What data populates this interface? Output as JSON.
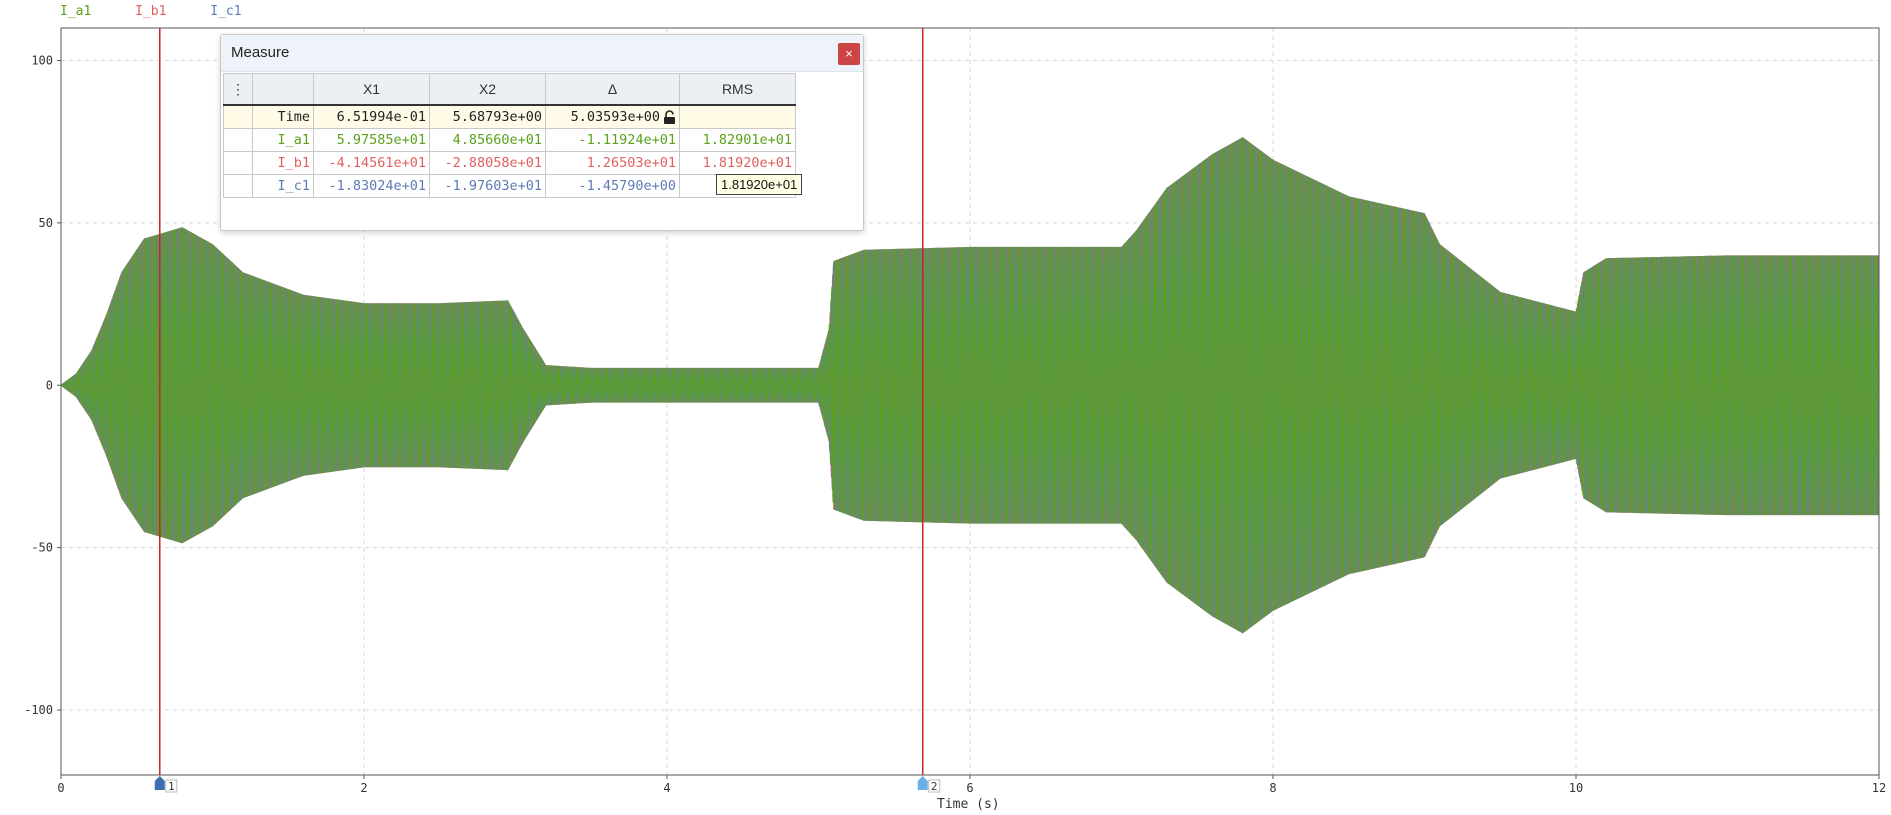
{
  "legend": [
    {
      "name": "I_a1",
      "color": "#5aa21a"
    },
    {
      "name": "I_b1",
      "color": "#e06060"
    },
    {
      "name": "I_c1",
      "color": "#5b7cb5"
    }
  ],
  "measure": {
    "title": "Measure",
    "close_label": "×",
    "menu_icon": "⋮",
    "headers": [
      "",
      "X1",
      "X2",
      "Δ",
      "RMS"
    ],
    "rows": [
      {
        "label": "Time",
        "x1": "6.51994e-01",
        "x2": "5.68793e+00",
        "delta": "5.03593e+00",
        "rms": "",
        "color": "#222222"
      },
      {
        "label": "I_a1",
        "x1": "5.97585e+01",
        "x2": "4.85660e+01",
        "delta": "-1.11924e+01",
        "rms": "1.82901e+01",
        "color": "#5aa21a"
      },
      {
        "label": "I_b1",
        "x1": "-4.14561e+01",
        "x2": "-2.88058e+01",
        "delta": "1.26503e+01",
        "rms": "1.81920e+01",
        "color": "#e06060"
      },
      {
        "label": "I_c1",
        "x1": "-1.83024e+01",
        "x2": "-1.97603e+01",
        "delta": "-1.45790e+00",
        "rms": "1.82...1",
        "color": "#5b7cb5"
      }
    ],
    "tooltip": "1.81920e+01"
  },
  "chart_data": {
    "type": "line",
    "xlabel": "Time (s)",
    "xlim": [
      0,
      12
    ],
    "ylim": [
      -120,
      110
    ],
    "xticks": [
      0,
      2,
      4,
      6,
      8,
      10,
      12
    ],
    "yticks": [
      100,
      50,
      0,
      -50,
      -100
    ],
    "grid": true,
    "cursors": [
      {
        "label": "1",
        "x": 0.652
      },
      {
        "label": "2",
        "x": 5.688
      }
    ],
    "series": [
      {
        "name": "I_a1",
        "color": "#5aa21a"
      },
      {
        "name": "I_b1",
        "color": "#e06060"
      },
      {
        "name": "I_c1",
        "color": "#5b7cb5"
      }
    ],
    "envelope": {
      "x": [
        0,
        0.1,
        0.2,
        0.3,
        0.4,
        0.55,
        0.8,
        1.0,
        1.2,
        1.6,
        2.0,
        2.5,
        2.95,
        3.05,
        3.2,
        3.5,
        4.0,
        4.5,
        5.0,
        5.07,
        5.1,
        5.3,
        6.0,
        7.0,
        7.1,
        7.3,
        7.6,
        7.8,
        8.0,
        8.5,
        9.0,
        9.1,
        9.5,
        10.0,
        10.05,
        10.2,
        11.0,
        12.0
      ],
      "amplitude": [
        0,
        4,
        12,
        25,
        40,
        52,
        56,
        50,
        40,
        32,
        29,
        29,
        30,
        20,
        7,
        6,
        6,
        6,
        6,
        20,
        44,
        48,
        49,
        49,
        55,
        70,
        82,
        88,
        80,
        67,
        61,
        50,
        33,
        26,
        40,
        45,
        46,
        46
      ]
    }
  }
}
